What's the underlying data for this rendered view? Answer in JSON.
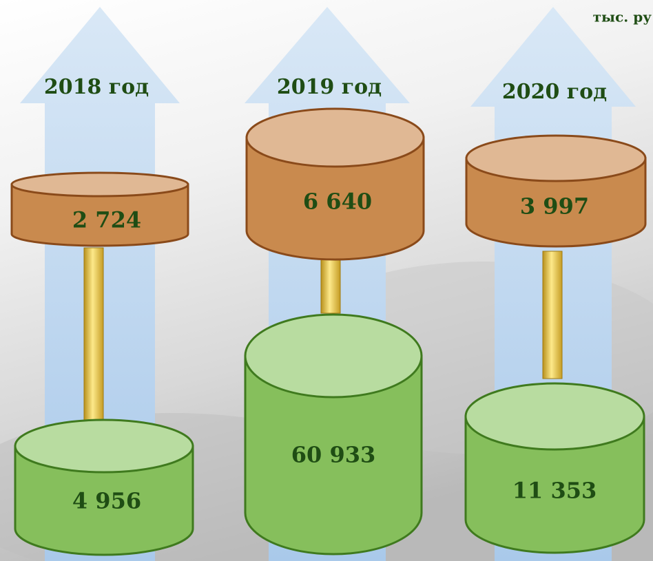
{
  "unit": "тыс. ру",
  "columns": [
    {
      "year": "2018 год",
      "top": "2 724",
      "bottom": "4 956"
    },
    {
      "year": "2019 год",
      "top": "6 640",
      "bottom": "60 933"
    },
    {
      "year": "2020 год",
      "top": "3 997",
      "bottom": "11 353"
    }
  ]
}
